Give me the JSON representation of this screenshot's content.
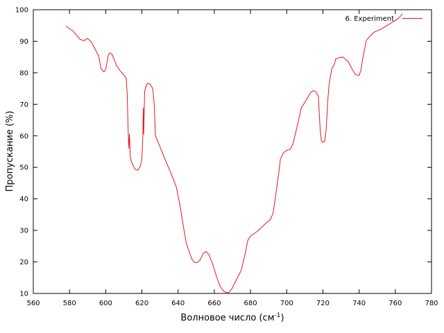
{
  "chart_data": {
    "type": "line",
    "xlabel_main": "Волновое число (см",
    "xlabel_sup": "-1",
    "xlabel_close": ")",
    "ylabel": "Пропускание (%)",
    "xlim": [
      560,
      780
    ],
    "ylim": [
      10,
      100
    ],
    "x_ticks": [
      560,
      580,
      600,
      620,
      640,
      660,
      680,
      700,
      720,
      740,
      760,
      780
    ],
    "y_ticks": [
      10,
      20,
      30,
      40,
      50,
      60,
      70,
      80,
      90,
      100
    ],
    "grid": false,
    "legend_position": "top-right",
    "series": [
      {
        "name": "6. Experiment",
        "color": "#e8141c",
        "points": [
          [
            578,
            94.8
          ],
          [
            582,
            93.2
          ],
          [
            586,
            90.5
          ],
          [
            588,
            90.2
          ],
          [
            590,
            90.9
          ],
          [
            592,
            89.8
          ],
          [
            596,
            85.5
          ],
          [
            597.5,
            81.2
          ],
          [
            599,
            80.3
          ],
          [
            600,
            81
          ],
          [
            601.5,
            85.8
          ],
          [
            602.5,
            86.3
          ],
          [
            603.5,
            85.8
          ],
          [
            605,
            83.8
          ],
          [
            606,
            82.2
          ],
          [
            608,
            80.6
          ],
          [
            610,
            79.3
          ],
          [
            611.3,
            78.3
          ],
          [
            611.9,
            73
          ],
          [
            612.2,
            66
          ],
          [
            612.5,
            60
          ],
          [
            612.8,
            56
          ],
          [
            613.1,
            60.5
          ],
          [
            613.4,
            56
          ],
          [
            613.6,
            53
          ],
          [
            614.5,
            51.4
          ],
          [
            616,
            49.6
          ],
          [
            617,
            49.2
          ],
          [
            618,
            49.2
          ],
          [
            619.2,
            50.5
          ],
          [
            620,
            53
          ],
          [
            620.5,
            60
          ],
          [
            620.8,
            68.8
          ],
          [
            621,
            60.5
          ],
          [
            621.5,
            74
          ],
          [
            622,
            75.3
          ],
          [
            623,
            76.6
          ],
          [
            624.5,
            76.4
          ],
          [
            626,
            75
          ],
          [
            626.8,
            70
          ],
          [
            627.5,
            60
          ],
          [
            630,
            56.5
          ],
          [
            633,
            52.2
          ],
          [
            636,
            48.3
          ],
          [
            639,
            43.8
          ],
          [
            641,
            38
          ],
          [
            643,
            31
          ],
          [
            644.5,
            26
          ],
          [
            646,
            23.5
          ],
          [
            647.5,
            21
          ],
          [
            649,
            19.9
          ],
          [
            650.5,
            19.8
          ],
          [
            652,
            20.5
          ],
          [
            654,
            22.8
          ],
          [
            655.5,
            23.3
          ],
          [
            657,
            22.3
          ],
          [
            659,
            19.5
          ],
          [
            661,
            15.8
          ],
          [
            663,
            12.5
          ],
          [
            665,
            10.8
          ],
          [
            666.5,
            10.3
          ],
          [
            668,
            10.3
          ],
          [
            669.5,
            11.3
          ],
          [
            671,
            13
          ],
          [
            673,
            15.2
          ],
          [
            675,
            17.5
          ],
          [
            677,
            22.5
          ],
          [
            678.5,
            26.8
          ],
          [
            680,
            28.2
          ],
          [
            684,
            29.8
          ],
          [
            688,
            32
          ],
          [
            691,
            33.5
          ],
          [
            692.5,
            35.5
          ],
          [
            694,
            41.5
          ],
          [
            695.5,
            47.7
          ],
          [
            696.5,
            52.5
          ],
          [
            698,
            54.5
          ],
          [
            700,
            55.4
          ],
          [
            702,
            55.8
          ],
          [
            703.5,
            57.5
          ],
          [
            706,
            63.5
          ],
          [
            708,
            68.8
          ],
          [
            711,
            71.5
          ],
          [
            713,
            73.6
          ],
          [
            714.5,
            74.3
          ],
          [
            716,
            74.1
          ],
          [
            717.5,
            72.5
          ],
          [
            718,
            67
          ],
          [
            718.5,
            62
          ],
          [
            719.2,
            58.2
          ],
          [
            720.5,
            58
          ],
          [
            721,
            58.2
          ],
          [
            721.8,
            62
          ],
          [
            722.3,
            67
          ],
          [
            722.8,
            72
          ],
          [
            723.5,
            76.7
          ],
          [
            725,
            81.5
          ],
          [
            726.5,
            82.8
          ],
          [
            727,
            84.3
          ],
          [
            729,
            84.8
          ],
          [
            731,
            85
          ],
          [
            734,
            83.5
          ],
          [
            736,
            81.3
          ],
          [
            738,
            79.4
          ],
          [
            740,
            79.2
          ],
          [
            741,
            80.8
          ],
          [
            742,
            84.5
          ],
          [
            744,
            90.3
          ],
          [
            746,
            91.6
          ],
          [
            748,
            92.8
          ],
          [
            752,
            93.8
          ],
          [
            756,
            95.2
          ],
          [
            760,
            96.6
          ],
          [
            762,
            97.4
          ],
          [
            764,
            98.7
          ]
        ]
      }
    ]
  }
}
